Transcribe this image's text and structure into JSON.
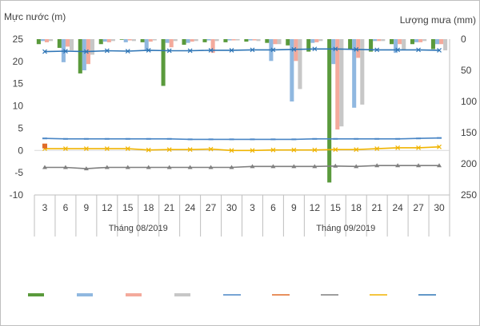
{
  "chart_data": {
    "type": "bar+line",
    "left_axis": {
      "title": "Mực nước (m)",
      "ylim": [
        -10,
        25
      ],
      "ticks": [
        25,
        20,
        15,
        10,
        5,
        0,
        -5,
        -10
      ]
    },
    "right_axis": {
      "title": "Lượng mưa (mm)",
      "ylim": [
        0,
        250
      ],
      "inverted": true,
      "ticks": [
        0,
        50,
        100,
        150,
        200,
        250
      ]
    },
    "categories": [
      "3",
      "6",
      "9",
      "12",
      "15",
      "18",
      "21",
      "24",
      "27",
      "30",
      "3",
      "6",
      "9",
      "12",
      "15",
      "18",
      "21",
      "24",
      "27",
      "30"
    ],
    "months": [
      {
        "label": "Tháng 08/2019",
        "start": 0,
        "end": 9
      },
      {
        "label": "Tháng 09/2019",
        "start": 10,
        "end": 19
      }
    ],
    "grid": "none",
    "legend_placement": "bottom",
    "rain_series": [
      {
        "color": "#5a9a3c",
        "values": [
          8,
          14,
          55,
          8,
          1,
          5,
          75,
          9,
          5,
          5,
          4,
          6,
          10,
          20,
          230,
          17,
          20,
          8,
          8,
          16
        ]
      },
      {
        "color": "#90b8e0",
        "values": [
          3,
          37,
          50,
          4,
          5,
          18,
          6,
          6,
          2,
          2,
          2,
          35,
          100,
          6,
          40,
          110,
          3,
          22,
          5,
          8
        ]
      },
      {
        "color": "#f4aa9c",
        "values": [
          5,
          12,
          40,
          5,
          2,
          4,
          13,
          4,
          22,
          2,
          2,
          8,
          35,
          5,
          145,
          30,
          3,
          8,
          5,
          8
        ]
      },
      {
        "color": "#c7c7c7",
        "values": [
          3,
          18,
          25,
          3,
          3,
          2,
          3,
          3,
          3,
          2,
          3,
          8,
          80,
          3,
          140,
          105,
          3,
          18,
          3,
          18
        ]
      }
    ],
    "level_series": [
      {
        "color": "#2e75b6",
        "marker": "x",
        "values": [
          22.2,
          22.3,
          22.2,
          22.4,
          22.3,
          22.5,
          22.4,
          22.4,
          22.5,
          22.5,
          22.6,
          22.6,
          22.7,
          22.8,
          22.8,
          22.7,
          22.6,
          22.6,
          22.6,
          22.5
        ]
      },
      {
        "color": "#4a86c5",
        "marker": "dash",
        "values": [
          2.7,
          2.6,
          2.6,
          2.6,
          2.6,
          2.6,
          2.6,
          2.5,
          2.5,
          2.5,
          2.5,
          2.5,
          2.5,
          2.6,
          2.6,
          2.6,
          2.6,
          2.6,
          2.7,
          2.8
        ]
      },
      {
        "color": "#f0b400",
        "marker": "x",
        "values": [
          0.4,
          0.4,
          0.4,
          0.4,
          0.4,
          0.1,
          0.2,
          0.2,
          0.3,
          0.0,
          0.0,
          0.1,
          0.1,
          0.1,
          0.2,
          0.2,
          0.4,
          0.6,
          0.6,
          0.8
        ]
      },
      {
        "color": "#7f7f7f",
        "marker": "triangle",
        "values": [
          -3.8,
          -3.8,
          -4.1,
          -3.8,
          -3.8,
          -3.8,
          -3.8,
          -3.8,
          -3.8,
          -3.8,
          -3.6,
          -3.6,
          -3.6,
          -3.6,
          -3.5,
          -3.6,
          -3.4,
          -3.4,
          -3.4,
          -3.4
        ]
      }
    ],
    "extra_points": [
      {
        "color": "#e06c29",
        "index": 0,
        "value": 1.0
      }
    ],
    "legend": [
      {
        "color": "#5a9a3c",
        "kind": "bar"
      },
      {
        "color": "#90b8e0",
        "kind": "bar"
      },
      {
        "color": "#f4aa9c",
        "kind": "bar"
      },
      {
        "color": "#c7c7c7",
        "kind": "bar"
      },
      {
        "color": "#4a86c5",
        "kind": "line"
      },
      {
        "color": "#e06c29",
        "kind": "line"
      },
      {
        "color": "#7f7f7f",
        "kind": "line"
      },
      {
        "color": "#f0b400",
        "kind": "line"
      },
      {
        "color": "#2e75b6",
        "kind": "line"
      }
    ]
  }
}
